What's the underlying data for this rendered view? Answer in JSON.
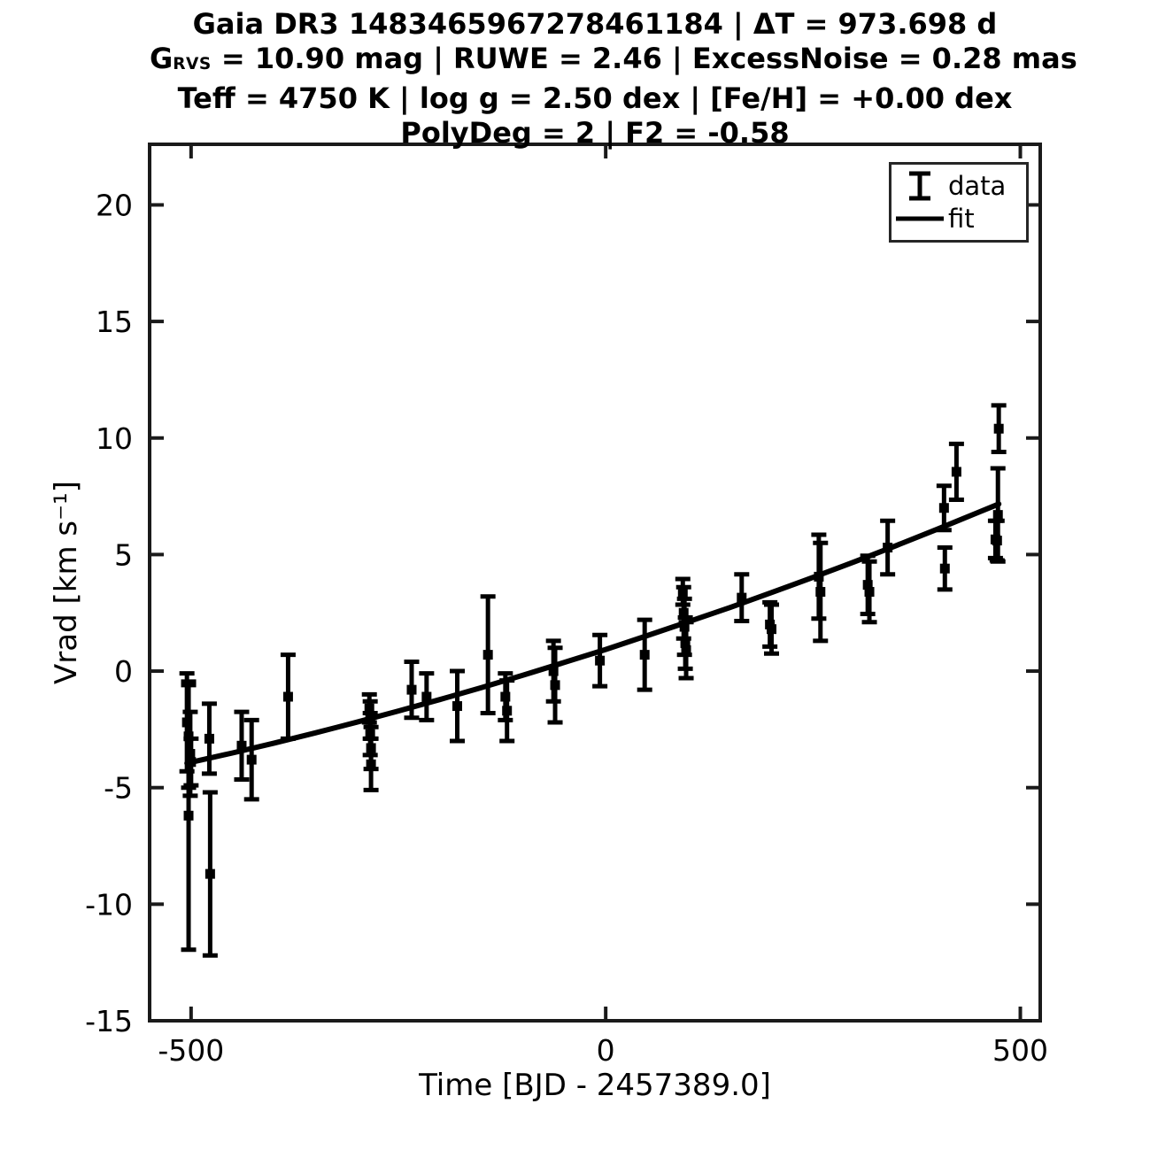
{
  "colors": {
    "ink": "#000000",
    "frame": "#1a1a1a",
    "background": "#ffffff"
  },
  "chart_data": {
    "type": "scatter",
    "title_lines": [
      "Gaia DR3 1483465967278461184 | ΔT = 973.698 d",
      {
        "prefix": "G",
        "sub": "RVS",
        "rest": " = 10.90 mag | RUWE = 2.46 | ExcessNoise = 0.28 mas"
      },
      "Teff = 4750 K | log g = 2.50 dex | [Fe/H] = +0.00 dex",
      "PolyDeg = 2 | F2 = -0.58"
    ],
    "xlabel": "Time [BJD - 2457389.0]",
    "ylabel": "Vrad [km s⁻¹]",
    "xlim": [
      -550,
      524
    ],
    "ylim": [
      -15,
      22.6
    ],
    "grid": false,
    "legend_labels": [
      "data",
      "fit"
    ],
    "legend_position": "upper right",
    "x_ticks": [
      -500,
      0,
      500
    ],
    "x_tick_labels": [
      "-500",
      "0",
      "500"
    ],
    "y_ticks": [
      20,
      15,
      10,
      5,
      0,
      -5,
      -10,
      -15
    ],
    "y_tick_labels": [
      "20",
      "15",
      "10",
      "5",
      "0",
      "-5",
      "-10",
      "-15"
    ],
    "errorbars": [
      {
        "x": -503,
        "y": -6.2,
        "e": 5.75
      },
      {
        "x": -505,
        "y": -2.2,
        "e": 2.1
      },
      {
        "x": -503,
        "y": -2.8,
        "e": 2.2
      },
      {
        "x": -501,
        "y": -3.55,
        "e": 1.8
      },
      {
        "x": -500,
        "y": -3.9,
        "e": 1.0
      },
      {
        "x": -478,
        "y": -2.9,
        "e": 1.5
      },
      {
        "x": -477,
        "y": -8.7,
        "e": 3.5
      },
      {
        "x": -439,
        "y": -3.2,
        "e": 1.45
      },
      {
        "x": -427,
        "y": -3.8,
        "e": 1.7
      },
      {
        "x": -383,
        "y": -1.1,
        "e": 1.8
      },
      {
        "x": -285,
        "y": -1.6,
        "e": 0.6
      },
      {
        "x": -284,
        "y": -2.1,
        "e": 0.8
      },
      {
        "x": -284,
        "y": -2.7,
        "e": 0.9
      },
      {
        "x": -283,
        "y": -3.3,
        "e": 0.9
      },
      {
        "x": -283,
        "y": -4.0,
        "e": 1.1
      },
      {
        "x": -234,
        "y": -0.8,
        "e": 1.2
      },
      {
        "x": -216,
        "y": -1.1,
        "e": 1.0
      },
      {
        "x": -179,
        "y": -1.5,
        "e": 1.5
      },
      {
        "x": -142,
        "y": 0.7,
        "e": 2.5
      },
      {
        "x": -121,
        "y": -1.1,
        "e": 1.0
      },
      {
        "x": -119,
        "y": -1.7,
        "e": 1.3
      },
      {
        "x": -63,
        "y": 0.0,
        "e": 1.3
      },
      {
        "x": -61,
        "y": -0.6,
        "e": 1.6
      },
      {
        "x": -7,
        "y": 0.45,
        "e": 1.1
      },
      {
        "x": 47,
        "y": 0.7,
        "e": 1.5
      },
      {
        "x": 93,
        "y": 3.4,
        "e": 0.55
      },
      {
        "x": 94,
        "y": 2.5,
        "e": 1.1
      },
      {
        "x": 95,
        "y": 1.9,
        "e": 1.2
      },
      {
        "x": 96,
        "y": 1.2,
        "e": 1.1
      },
      {
        "x": 97,
        "y": 0.9,
        "e": 1.2
      },
      {
        "x": 164,
        "y": 3.15,
        "e": 1.0
      },
      {
        "x": 198,
        "y": 2.0,
        "e": 0.95
      },
      {
        "x": 200,
        "y": 1.8,
        "e": 1.05
      },
      {
        "x": 257,
        "y": 4.05,
        "e": 1.8
      },
      {
        "x": 259,
        "y": 3.4,
        "e": 2.1
      },
      {
        "x": 316,
        "y": 3.7,
        "e": 1.25
      },
      {
        "x": 318,
        "y": 3.4,
        "e": 1.3
      },
      {
        "x": 340,
        "y": 5.3,
        "e": 1.15
      },
      {
        "x": 408,
        "y": 7.0,
        "e": 0.95
      },
      {
        "x": 409,
        "y": 4.4,
        "e": 0.9
      },
      {
        "x": 423,
        "y": 8.55,
        "e": 1.2
      },
      {
        "x": 470,
        "y": 5.65,
        "e": 0.8
      },
      {
        "x": 472,
        "y": 5.6,
        "e": 0.85
      },
      {
        "x": 473,
        "y": 6.7,
        "e": 2.0
      },
      {
        "x": 474,
        "y": 10.4,
        "e": 1.0
      }
    ],
    "fit_line": [
      [
        -505,
        -3.95
      ],
      [
        -450,
        -3.51
      ],
      [
        -400,
        -3.09
      ],
      [
        -350,
        -2.65
      ],
      [
        -300,
        -2.19
      ],
      [
        -250,
        -1.71
      ],
      [
        -200,
        -1.22
      ],
      [
        -150,
        -0.71
      ],
      [
        -100,
        -0.18
      ],
      [
        -50,
        0.37
      ],
      [
        0,
        0.93
      ],
      [
        50,
        1.52
      ],
      [
        100,
        2.12
      ],
      [
        150,
        2.73
      ],
      [
        200,
        3.37
      ],
      [
        250,
        4.02
      ],
      [
        300,
        4.69
      ],
      [
        350,
        5.38
      ],
      [
        400,
        6.09
      ],
      [
        450,
        6.82
      ],
      [
        474,
        7.17
      ]
    ]
  }
}
